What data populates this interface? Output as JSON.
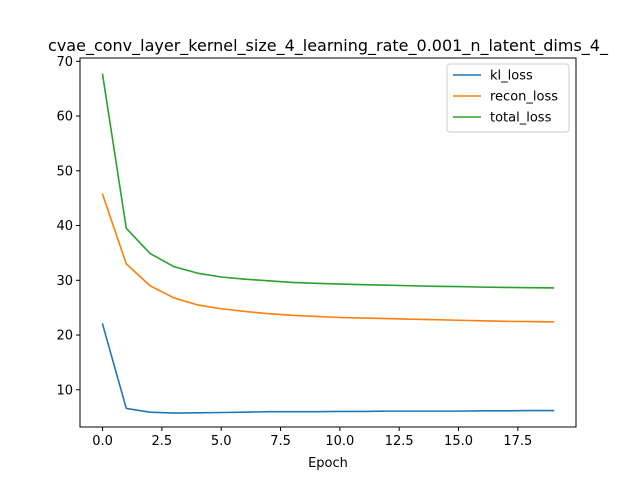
{
  "chart_data": {
    "type": "line",
    "title": "cvae_conv_layer_kernel_size_4_learning_rate_0.001_n_latent_dims_4_",
    "xlabel": "Epoch",
    "ylabel": "",
    "xlim": [
      -0.95,
      19.95
    ],
    "ylim": [
      3.2,
      70.6
    ],
    "x_ticks": [
      0.0,
      2.5,
      5.0,
      7.5,
      10.0,
      12.5,
      15.0,
      17.5
    ],
    "x_tick_labels": [
      "0.0",
      "2.5",
      "5.0",
      "7.5",
      "10.0",
      "12.5",
      "15.0",
      "17.5"
    ],
    "y_ticks": [
      10,
      20,
      30,
      40,
      50,
      60,
      70
    ],
    "y_tick_labels": [
      "10",
      "20",
      "30",
      "40",
      "50",
      "60",
      "70"
    ],
    "grid": false,
    "legend_position": "top-right",
    "x": [
      0,
      1,
      2,
      3,
      4,
      5,
      6,
      7,
      8,
      9,
      10,
      11,
      12,
      13,
      14,
      15,
      16,
      17,
      18,
      19
    ],
    "series": [
      {
        "name": "kl_loss",
        "color": "#1f77b4",
        "values": [
          22.0,
          6.6,
          5.9,
          5.75,
          5.8,
          5.85,
          5.9,
          6.0,
          6.0,
          6.0,
          6.05,
          6.05,
          6.1,
          6.1,
          6.1,
          6.1,
          6.15,
          6.15,
          6.2,
          6.2
        ]
      },
      {
        "name": "recon_loss",
        "color": "#ff7f0e",
        "values": [
          45.7,
          33.0,
          29.0,
          26.8,
          25.5,
          24.8,
          24.3,
          23.9,
          23.6,
          23.4,
          23.2,
          23.1,
          23.0,
          22.9,
          22.8,
          22.7,
          22.6,
          22.5,
          22.45,
          22.4
        ]
      },
      {
        "name": "total_loss",
        "color": "#2ca02c",
        "values": [
          67.6,
          39.5,
          34.9,
          32.5,
          31.3,
          30.6,
          30.2,
          29.9,
          29.6,
          29.45,
          29.3,
          29.2,
          29.1,
          29.0,
          28.9,
          28.85,
          28.75,
          28.7,
          28.65,
          28.6
        ]
      }
    ]
  }
}
